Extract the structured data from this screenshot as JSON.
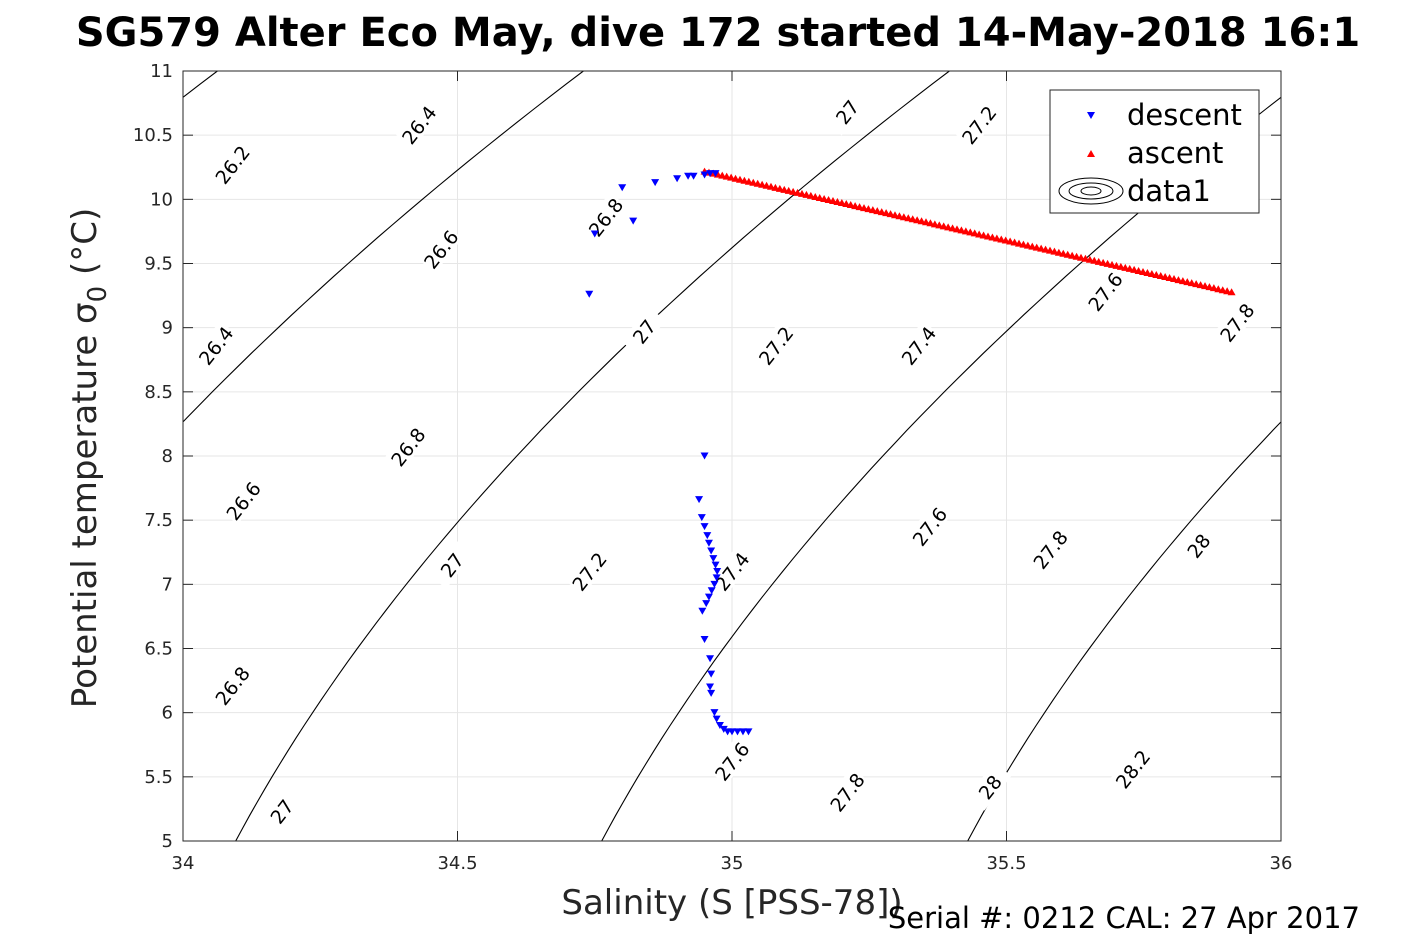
{
  "chart_data": {
    "type": "scatter",
    "title": "SG579 Alter Eco May, dive 172 started 14-May-2018 16:1",
    "xlabel": "Salinity (S [PSS-78])",
    "ylabel": "Potential temperature σ",
    "ylabel_sub": "0",
    "ylabel_unit": " (°C)",
    "footer": "Serial #: 0212  CAL: 27 Apr 2017",
    "xlim": [
      34,
      36
    ],
    "ylim": [
      5,
      11
    ],
    "grid": true,
    "legend_position": "top-right",
    "xticks": [
      "34",
      "34.5",
      "35",
      "35.5",
      "36"
    ],
    "yticks": [
      "5",
      "5.5",
      "6",
      "6.5",
      "7",
      "7.5",
      "8",
      "8.5",
      "9",
      "9.5",
      "10",
      "10.5",
      "11"
    ],
    "colors": {
      "descent": "#0000ff",
      "ascent": "#ff0000",
      "contour": "#000000",
      "grid": "#e6e6e6"
    },
    "series": [
      {
        "name": "descent",
        "marker": "triangle-down",
        "color": "#0000ff",
        "points": [
          [
            34.74,
            9.26
          ],
          [
            34.75,
            9.73
          ],
          [
            34.8,
            10.09
          ],
          [
            34.82,
            9.83
          ],
          [
            34.86,
            10.13
          ],
          [
            34.9,
            10.16
          ],
          [
            34.92,
            10.18
          ],
          [
            34.93,
            10.18
          ],
          [
            34.95,
            10.19
          ],
          [
            34.96,
            10.2
          ],
          [
            34.97,
            10.2
          ],
          [
            34.95,
            8.0
          ],
          [
            34.94,
            7.66
          ],
          [
            34.945,
            7.52
          ],
          [
            34.95,
            7.45
          ],
          [
            34.955,
            7.38
          ],
          [
            34.958,
            7.32
          ],
          [
            34.962,
            7.26
          ],
          [
            34.966,
            7.2
          ],
          [
            34.97,
            7.15
          ],
          [
            34.973,
            7.1
          ],
          [
            34.972,
            7.05
          ],
          [
            34.968,
            7.0
          ],
          [
            34.963,
            6.95
          ],
          [
            34.958,
            6.9
          ],
          [
            34.953,
            6.85
          ],
          [
            34.946,
            6.79
          ],
          [
            34.95,
            6.57
          ],
          [
            34.96,
            6.42
          ],
          [
            34.962,
            6.3
          ],
          [
            34.96,
            6.2
          ],
          [
            34.962,
            6.15
          ],
          [
            34.968,
            6.0
          ],
          [
            34.972,
            5.95
          ],
          [
            34.978,
            5.9
          ],
          [
            34.985,
            5.87
          ],
          [
            34.992,
            5.85
          ],
          [
            35.0,
            5.85
          ],
          [
            35.01,
            5.85
          ],
          [
            35.02,
            5.85
          ],
          [
            35.03,
            5.85
          ]
        ]
      },
      {
        "name": "ascent",
        "marker": "triangle-up",
        "color": "#ff0000",
        "from": [
          34.95,
          10.22
        ],
        "to": [
          35.91,
          9.28
        ],
        "count": 120
      },
      {
        "name": "data1",
        "marker": "contour",
        "color": "#000000"
      }
    ],
    "contour_levels": [
      "26.2",
      "26.4",
      "26.6",
      "26.8",
      "27",
      "27.2",
      "27.4",
      "27.6",
      "27.8",
      "28",
      "28.2"
    ],
    "contour_labels": [
      {
        "text": "26.2",
        "s": 34.09,
        "t": 10.27
      },
      {
        "text": "26.4",
        "s": 34.43,
        "t": 10.58
      },
      {
        "text": "26.8",
        "s": 34.77,
        "t": 9.86
      },
      {
        "text": "26.6",
        "s": 34.47,
        "t": 9.61
      },
      {
        "text": "27",
        "s": 35.21,
        "t": 10.68
      },
      {
        "text": "27.2",
        "s": 35.45,
        "t": 10.58
      },
      {
        "text": "26.4",
        "s": 34.06,
        "t": 8.86
      },
      {
        "text": "27",
        "s": 34.84,
        "t": 8.97
      },
      {
        "text": "27.2",
        "s": 35.08,
        "t": 8.86
      },
      {
        "text": "27.4",
        "s": 35.34,
        "t": 8.86
      },
      {
        "text": "27.6",
        "s": 35.68,
        "t": 9.28
      },
      {
        "text": "27.8",
        "s": 35.92,
        "t": 9.04
      },
      {
        "text": "26.8",
        "s": 34.41,
        "t": 8.07
      },
      {
        "text": "26.6",
        "s": 34.11,
        "t": 7.65
      },
      {
        "text": "27.6",
        "s": 35.36,
        "t": 7.45
      },
      {
        "text": "27",
        "s": 34.49,
        "t": 7.15
      },
      {
        "text": "27.2",
        "s": 34.74,
        "t": 7.1
      },
      {
        "text": "27.4",
        "s": 35.0,
        "t": 7.1
      },
      {
        "text": "27.8",
        "s": 35.58,
        "t": 7.27
      },
      {
        "text": "28",
        "s": 35.85,
        "t": 7.3
      },
      {
        "text": "26.8",
        "s": 34.09,
        "t": 6.21
      },
      {
        "text": "27.6",
        "s": 35.0,
        "t": 5.62
      },
      {
        "text": "27.8",
        "s": 35.21,
        "t": 5.38
      },
      {
        "text": "28",
        "s": 35.47,
        "t": 5.42
      },
      {
        "text": "28.2",
        "s": 35.73,
        "t": 5.56
      },
      {
        "text": "27",
        "s": 34.18,
        "t": 5.23
      }
    ]
  }
}
